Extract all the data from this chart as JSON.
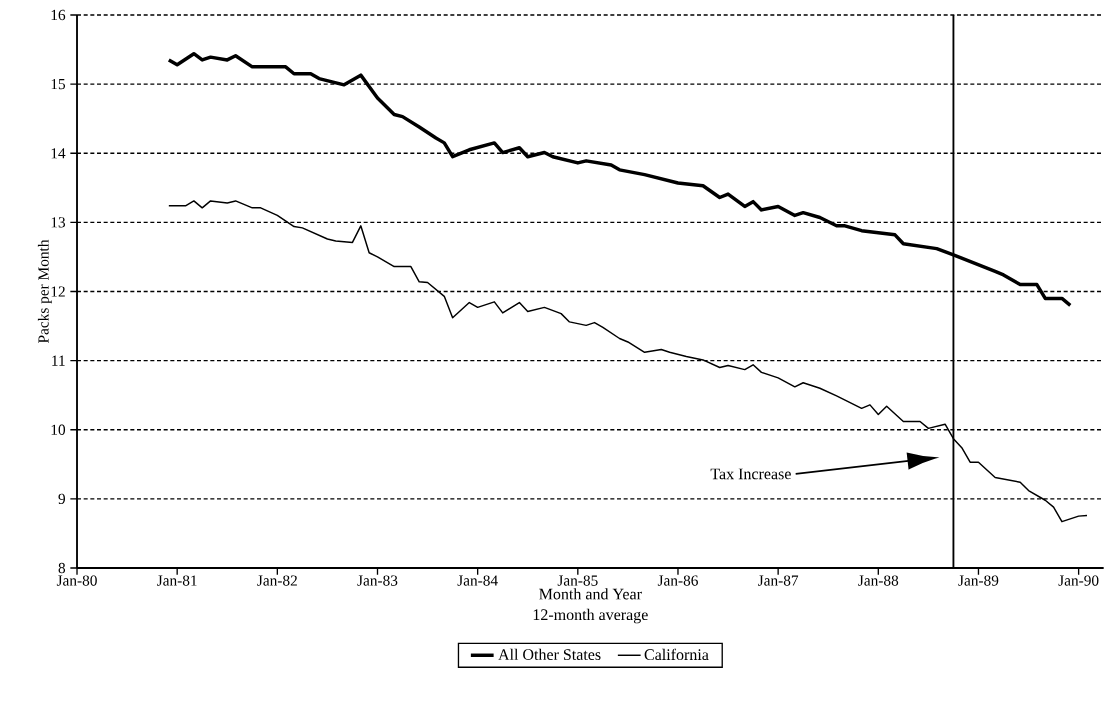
{
  "chart_data": {
    "type": "line",
    "xlabel": "Month and Year",
    "ylabel": "Packs per Month",
    "xlim": [
      "1980-01",
      "1990-04"
    ],
    "ylim": [
      8,
      16
    ],
    "xticks": [
      {
        "value": "1980-01",
        "label": "Jan-80"
      },
      {
        "value": "1981-01",
        "label": "Jan-81"
      },
      {
        "value": "1982-01",
        "label": "Jan-82"
      },
      {
        "value": "1983-01",
        "label": "Jan-83"
      },
      {
        "value": "1984-01",
        "label": "Jan-84"
      },
      {
        "value": "1985-01",
        "label": "Jan-85"
      },
      {
        "value": "1986-01",
        "label": "Jan-86"
      },
      {
        "value": "1987-01",
        "label": "Jan-87"
      },
      {
        "value": "1988-01",
        "label": "Jan-88"
      },
      {
        "value": "1989-01",
        "label": "Jan-89"
      },
      {
        "value": "1990-01",
        "label": "Jan-90"
      }
    ],
    "yticks": [
      8,
      9,
      10,
      11,
      12,
      13,
      14,
      15,
      16
    ],
    "grid": "y",
    "legend": "bottom",
    "series": [
      {
        "name": "All Other States",
        "color": "#000000",
        "x": [
          "1980-12",
          "1981-01",
          "1981-03",
          "1981-04",
          "1981-05",
          "1981-07",
          "1981-08",
          "1981-10",
          "1982-02",
          "1982-03",
          "1982-05",
          "1982-06",
          "1982-09",
          "1982-11",
          "1983-01",
          "1983-03",
          "1983-04",
          "1983-06",
          "1983-08",
          "1983-09",
          "1983-10",
          "1983-12",
          "1984-03",
          "1984-04",
          "1984-06",
          "1984-07",
          "1984-09",
          "1984-10",
          "1985-01",
          "1985-02",
          "1985-05",
          "1985-06",
          "1985-09",
          "1986-01",
          "1986-04",
          "1986-06",
          "1986-07",
          "1986-09",
          "1986-10",
          "1986-11",
          "1987-01",
          "1987-03",
          "1987-04",
          "1987-06",
          "1987-08",
          "1987-09",
          "1987-11",
          "1988-03",
          "1988-04",
          "1988-08",
          "1988-10",
          "1989-03",
          "1989-04",
          "1989-06",
          "1989-08",
          "1989-09",
          "1989-11",
          "1989-12"
        ],
        "values": [
          15.35,
          15.28,
          15.44,
          15.35,
          15.39,
          15.35,
          15.41,
          15.25,
          15.25,
          15.15,
          15.15,
          15.08,
          14.99,
          15.13,
          14.8,
          14.56,
          14.53,
          14.38,
          14.22,
          14.15,
          13.95,
          14.05,
          14.15,
          14.01,
          14.08,
          13.95,
          14.01,
          13.95,
          13.86,
          13.89,
          13.83,
          13.76,
          13.69,
          13.57,
          13.53,
          13.36,
          13.41,
          13.23,
          13.3,
          13.18,
          13.23,
          13.1,
          13.14,
          13.07,
          12.95,
          12.95,
          12.88,
          12.82,
          12.69,
          12.62,
          12.53,
          12.29,
          12.24,
          12.1,
          12.1,
          11.9,
          11.9,
          11.8
        ]
      },
      {
        "name": "California",
        "color": "#000000",
        "x": [
          "1980-12",
          "1981-02",
          "1981-03",
          "1981-04",
          "1981-05",
          "1981-07",
          "1981-08",
          "1981-10",
          "1981-11",
          "1982-01",
          "1982-03",
          "1982-04",
          "1982-07",
          "1982-08",
          "1982-10",
          "1982-11",
          "1982-12",
          "1983-01",
          "1983-03",
          "1983-05",
          "1983-06",
          "1983-07",
          "1983-09",
          "1983-10",
          "1983-12",
          "1984-01",
          "1984-03",
          "1984-04",
          "1984-06",
          "1984-07",
          "1984-09",
          "1984-11",
          "1984-12",
          "1985-02",
          "1985-03",
          "1985-04",
          "1985-06",
          "1985-07",
          "1985-09",
          "1985-11",
          "1985-12",
          "1986-02",
          "1986-04",
          "1986-06",
          "1986-07",
          "1986-09",
          "1986-10",
          "1986-11",
          "1987-01",
          "1987-03",
          "1987-04",
          "1987-06",
          "1987-08",
          "1987-11",
          "1987-12",
          "1988-01",
          "1988-02",
          "1988-04",
          "1988-06",
          "1988-07",
          "1988-09",
          "1988-10",
          "1988-11",
          "1988-12",
          "1989-01",
          "1989-03",
          "1989-06",
          "1989-07",
          "1989-09",
          "1989-10",
          "1989-11",
          "1990-01",
          "1990-02"
        ],
        "values": [
          13.24,
          13.24,
          13.31,
          13.21,
          13.31,
          13.28,
          13.31,
          13.21,
          13.21,
          13.1,
          12.94,
          12.92,
          12.76,
          12.73,
          12.71,
          12.95,
          12.56,
          12.5,
          12.36,
          12.36,
          12.14,
          12.13,
          11.93,
          11.62,
          11.84,
          11.77,
          11.85,
          11.69,
          11.84,
          11.71,
          11.77,
          11.68,
          11.56,
          11.51,
          11.55,
          11.48,
          11.32,
          11.27,
          11.12,
          11.16,
          11.12,
          11.06,
          11.01,
          10.9,
          10.93,
          10.87,
          10.94,
          10.83,
          10.75,
          10.62,
          10.68,
          10.6,
          10.49,
          10.31,
          10.36,
          10.22,
          10.34,
          10.12,
          10.12,
          10.02,
          10.08,
          9.87,
          9.74,
          9.53,
          9.53,
          9.31,
          9.24,
          9.12,
          8.98,
          8.88,
          8.67,
          8.75,
          8.76
        ]
      }
    ],
    "ref_lines": [
      {
        "axis": "x",
        "value": "1988-10"
      }
    ],
    "annotations": [
      "Tax Increase",
      "12-month average"
    ]
  }
}
